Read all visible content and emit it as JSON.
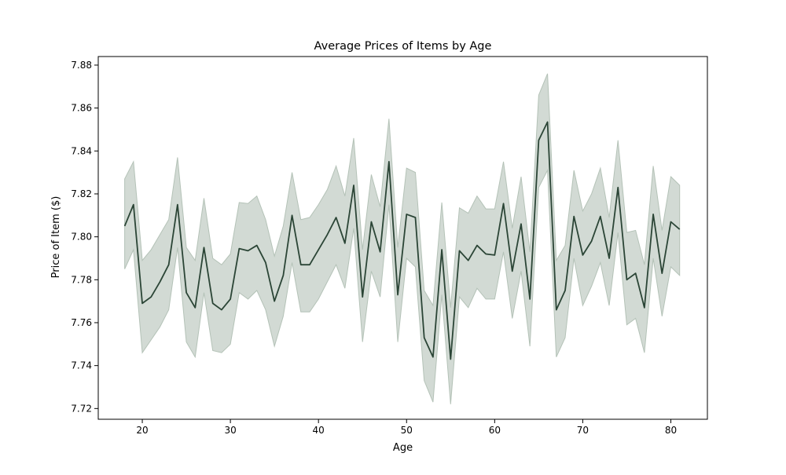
{
  "chart_data": {
    "type": "line",
    "title": "Average Prices of Items by Age",
    "xlabel": "Age",
    "ylabel": "Price of Item ($)",
    "xlim": [
      15,
      84.15
    ],
    "ylim": [
      7.715,
      7.884
    ],
    "x_ticks": [
      20,
      30,
      40,
      50,
      60,
      70,
      80
    ],
    "y_ticks": [
      7.72,
      7.74,
      7.76,
      7.78,
      7.8,
      7.82,
      7.84,
      7.86,
      7.88
    ],
    "grid": false,
    "legend": "none",
    "colors": {
      "line": "#2b4536",
      "band": "#b4c2b7",
      "axes": "#000000"
    },
    "series": [
      {
        "x": [
          18,
          19,
          20,
          21,
          22,
          23,
          24,
          25,
          26,
          27,
          28,
          29,
          30,
          31,
          32,
          33,
          34,
          35,
          36,
          37,
          38,
          39,
          40,
          41,
          42,
          43,
          44,
          45,
          46,
          47,
          48,
          49,
          50,
          51,
          52,
          53,
          54,
          55,
          56,
          57,
          58,
          59,
          60,
          61,
          62,
          63,
          64,
          65,
          66,
          67,
          68,
          69,
          70,
          71,
          72,
          73,
          74,
          75,
          76,
          77,
          78,
          79,
          80,
          81
        ],
        "y": [
          7.805,
          7.815,
          7.769,
          7.772,
          7.779,
          7.787,
          7.815,
          7.774,
          7.767,
          7.795,
          7.769,
          7.766,
          7.771,
          7.7945,
          7.7935,
          7.796,
          7.788,
          7.77,
          7.782,
          7.81,
          7.787,
          7.787,
          7.794,
          7.801,
          7.809,
          7.797,
          7.824,
          7.772,
          7.807,
          7.793,
          7.835,
          7.773,
          7.8105,
          7.809,
          7.753,
          7.744,
          7.794,
          7.743,
          7.7935,
          7.789,
          7.796,
          7.792,
          7.7915,
          7.8155,
          7.784,
          7.806,
          7.771,
          7.845,
          7.8535,
          7.766,
          7.775,
          7.8095,
          7.7915,
          7.798,
          7.8095,
          7.79,
          7.823,
          7.78,
          7.783,
          7.767,
          7.8105,
          7.783,
          7.807,
          7.8035
        ],
        "ci_upper": [
          7.827,
          7.835,
          7.789,
          7.794,
          7.801,
          7.808,
          7.837,
          7.795,
          7.789,
          7.818,
          7.79,
          7.787,
          7.792,
          7.816,
          7.8155,
          7.819,
          7.808,
          7.791,
          7.805,
          7.83,
          7.808,
          7.809,
          7.815,
          7.822,
          7.833,
          7.819,
          7.846,
          7.794,
          7.829,
          7.814,
          7.855,
          7.795,
          7.832,
          7.83,
          7.775,
          7.768,
          7.816,
          7.767,
          7.8135,
          7.811,
          7.819,
          7.813,
          7.813,
          7.835,
          7.804,
          7.828,
          7.793,
          7.866,
          7.876,
          7.789,
          7.796,
          7.831,
          7.812,
          7.82,
          7.832,
          7.809,
          7.845,
          7.802,
          7.803,
          7.787,
          7.833,
          7.803,
          7.828,
          7.824
        ],
        "ci_lower": [
          7.785,
          7.794,
          7.746,
          7.752,
          7.758,
          7.766,
          7.795,
          7.751,
          7.744,
          7.774,
          7.747,
          7.746,
          7.75,
          7.774,
          7.771,
          7.775,
          7.766,
          7.749,
          7.763,
          7.788,
          7.765,
          7.765,
          7.771,
          7.779,
          7.787,
          7.776,
          7.804,
          7.751,
          7.784,
          7.772,
          7.815,
          7.751,
          7.79,
          7.786,
          7.733,
          7.723,
          7.773,
          7.722,
          7.772,
          7.767,
          7.776,
          7.771,
          7.771,
          7.793,
          7.762,
          7.784,
          7.749,
          7.823,
          7.831,
          7.744,
          7.753,
          7.79,
          7.768,
          7.777,
          7.788,
          7.768,
          7.802,
          7.759,
          7.762,
          7.746,
          7.79,
          7.763,
          7.786,
          7.782
        ]
      }
    ]
  }
}
